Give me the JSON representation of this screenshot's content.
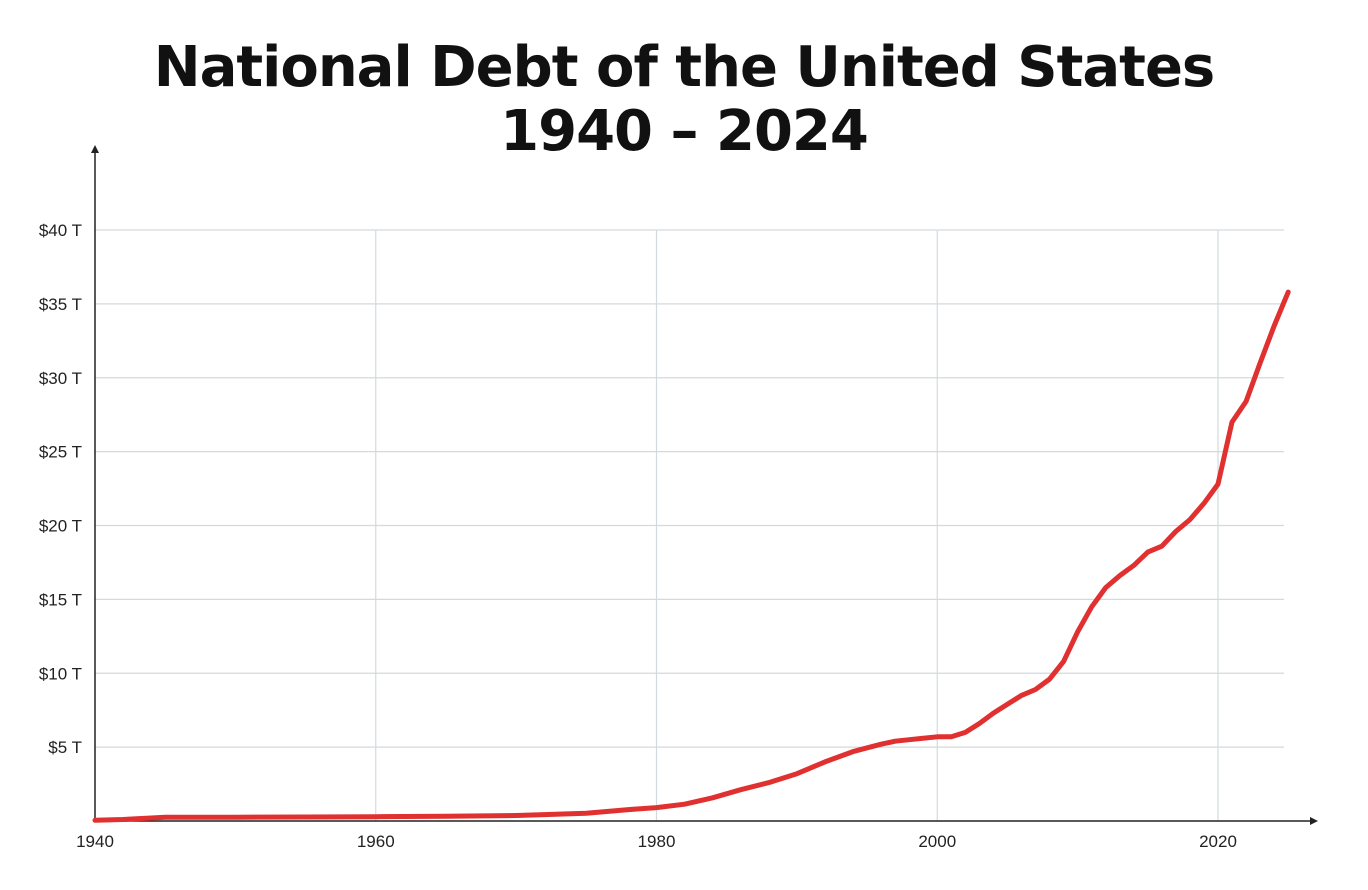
{
  "chart_data": {
    "type": "line",
    "title": "National Debt of the United States",
    "subtitle": "1940 – 2024",
    "xlabel": "",
    "ylabel": "",
    "xlim": [
      1940,
      2025
    ],
    "ylim": [
      0,
      40
    ],
    "x_ticks": [
      {
        "value": 1940,
        "label": "1940"
      },
      {
        "value": 1960,
        "label": "1960"
      },
      {
        "value": 1980,
        "label": "1980"
      },
      {
        "value": 2000,
        "label": "2000"
      },
      {
        "value": 2020,
        "label": "2020"
      }
    ],
    "y_ticks": [
      {
        "value": 5,
        "label": "$5 T"
      },
      {
        "value": 10,
        "label": "$10 T"
      },
      {
        "value": 15,
        "label": "$15 T"
      },
      {
        "value": 20,
        "label": "$20 T"
      },
      {
        "value": 25,
        "label": "$25 T"
      },
      {
        "value": 30,
        "label": "$30 T"
      },
      {
        "value": 35,
        "label": "$35 T"
      },
      {
        "value": 40,
        "label": "$40 T"
      }
    ],
    "grid": true,
    "line_color": "#e03030",
    "grid_color": "#d3dadd",
    "series": [
      {
        "x": [
          1940,
          1942,
          1944,
          1945,
          1950,
          1955,
          1960,
          1965,
          1970,
          1972,
          1975,
          1978,
          1980,
          1982,
          1984,
          1986,
          1988,
          1990,
          1992,
          1994,
          1996,
          1997,
          1998,
          1999,
          2000,
          2001,
          2002,
          2003,
          2004,
          2005,
          2006,
          2007,
          2008,
          2009,
          2010,
          2011,
          2012,
          2013,
          2014,
          2015,
          2016,
          2017,
          2018,
          2019,
          2020,
          2021,
          2022,
          2023,
          2024,
          2025
        ],
        "y": [
          0.05,
          0.1,
          0.2,
          0.26,
          0.26,
          0.27,
          0.29,
          0.32,
          0.37,
          0.43,
          0.53,
          0.77,
          0.91,
          1.14,
          1.57,
          2.12,
          2.6,
          3.2,
          4.0,
          4.7,
          5.2,
          5.4,
          5.5,
          5.6,
          5.7,
          5.7,
          6.0,
          6.6,
          7.3,
          7.9,
          8.5,
          8.9,
          9.6,
          10.8,
          12.8,
          14.5,
          15.8,
          16.6,
          17.3,
          18.2,
          18.6,
          19.6,
          20.4,
          21.5,
          22.8,
          27.0,
          28.4,
          31.0,
          33.5,
          35.8
        ]
      }
    ]
  }
}
